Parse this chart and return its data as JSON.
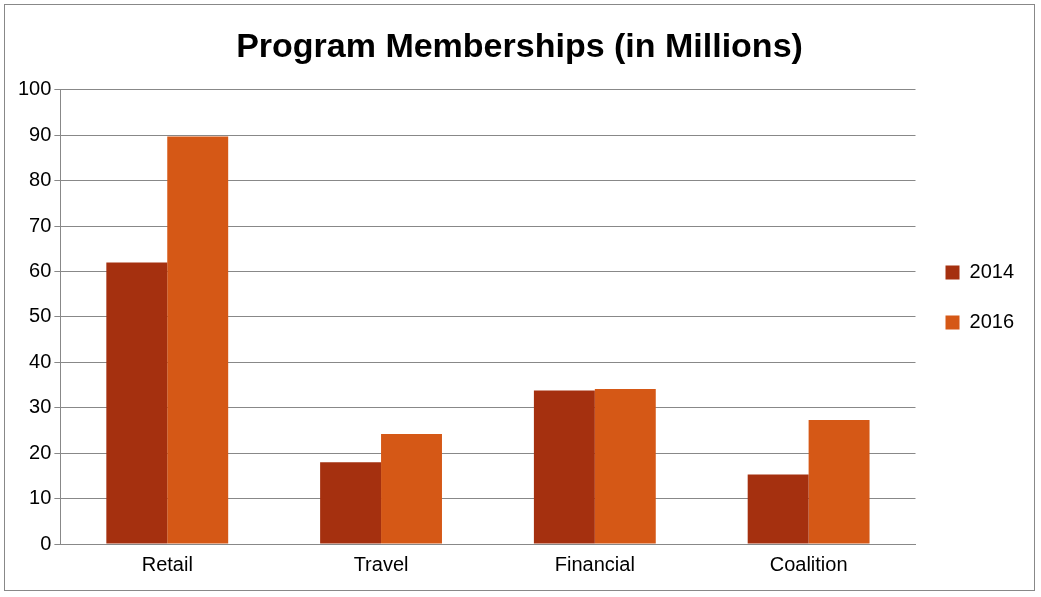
{
  "chart_data": {
    "type": "bar",
    "title": "Program Memberships (in Millions)",
    "categories": [
      "Retail",
      "Travel",
      "Financial",
      "Coalition"
    ],
    "series": [
      {
        "name": "2014",
        "color": "#a5300f",
        "values": [
          62,
          18,
          33.8,
          15.3
        ]
      },
      {
        "name": "2016",
        "color": "#d55816",
        "values": [
          89.7,
          24.2,
          34.1,
          27.3
        ]
      }
    ],
    "ylim": [
      0,
      100
    ],
    "yticks": [
      0,
      10,
      20,
      30,
      40,
      50,
      60,
      70,
      80,
      90,
      100
    ],
    "grid": "y",
    "legend": "right"
  }
}
